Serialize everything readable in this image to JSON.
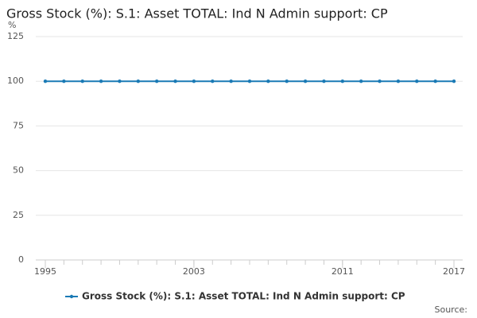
{
  "chart_data": {
    "type": "line",
    "title": "Gross Stock (%): S.1: Asset TOTAL: Ind N Admin support: CP",
    "y_unit": "%",
    "source": "Source:",
    "x": [
      1995,
      1996,
      1997,
      1998,
      1999,
      2000,
      2001,
      2002,
      2003,
      2004,
      2005,
      2006,
      2007,
      2008,
      2009,
      2010,
      2011,
      2012,
      2013,
      2014,
      2015,
      2016,
      2017
    ],
    "series": [
      {
        "name": "Gross Stock (%): S.1: Asset TOTAL: Ind N Admin support: CP",
        "color": "#1a7ab5",
        "values": [
          100,
          100,
          100,
          100,
          100,
          100,
          100,
          100,
          100,
          100,
          100,
          100,
          100,
          100,
          100,
          100,
          100,
          100,
          100,
          100,
          100,
          100,
          100
        ]
      }
    ],
    "xlim": [
      1995,
      2017
    ],
    "xticks": [
      1995,
      2003,
      2011,
      2017
    ],
    "ylim": [
      0,
      125
    ],
    "yticks": [
      0,
      25,
      50,
      75,
      100,
      125
    ],
    "grid": true
  }
}
